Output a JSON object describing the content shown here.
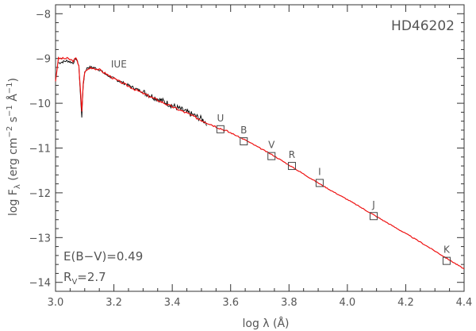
{
  "chart_data": {
    "type": "line",
    "title": "HD46202",
    "xlabel": "log λ (Å)",
    "ylabel_parts": {
      "pre": "log F",
      "sub": "λ",
      "unit_open": " (erg cm",
      "sup1": "−2",
      "mid1": " s",
      "sup2": "−1",
      "mid2": " Å",
      "sup3": "−1",
      "close": ")"
    },
    "xlim": [
      3.0,
      4.4
    ],
    "ylim": [
      -14.2,
      -7.8
    ],
    "xticks": [
      3.0,
      3.2,
      3.4,
      3.6,
      3.8,
      4.0,
      4.2,
      4.4
    ],
    "xtick_labels": [
      "3.0",
      "3.2",
      "3.4",
      "3.6",
      "3.8",
      "4.0",
      "4.2",
      "4.4"
    ],
    "yticks": [
      -14,
      -13,
      -12,
      -11,
      -10,
      -9,
      -8
    ],
    "ytick_labels": [
      "−14",
      "−13",
      "−12",
      "−11",
      "−10",
      "−9",
      "−8"
    ],
    "grid": false,
    "colors": {
      "observed": "#000000",
      "model": "#ee1111",
      "text": "#555555",
      "axes": "#333333"
    },
    "annotations": {
      "reddening": "E(B−V)=0.49",
      "rv_main": "R",
      "rv_sub": "V",
      "rv_value": "=2.7",
      "iue_label": "IUE"
    },
    "series": [
      {
        "kind": "observed-iue",
        "x": [
          3.01,
          3.04,
          3.06,
          3.07,
          3.08,
          3.085,
          3.09,
          3.095,
          3.1,
          3.11,
          3.13,
          3.15,
          3.17,
          3.2,
          3.25,
          3.3,
          3.35,
          3.4,
          3.45,
          3.5,
          3.52
        ],
        "y": [
          -9.1,
          -9.05,
          -9.1,
          -9.0,
          -9.15,
          -9.8,
          -10.3,
          -9.6,
          -9.3,
          -9.2,
          -9.2,
          -9.25,
          -9.35,
          -9.45,
          -9.6,
          -9.75,
          -9.9,
          -10.05,
          -10.2,
          -10.35,
          -10.45
        ]
      },
      {
        "kind": "model",
        "x": [
          3.0,
          3.01,
          3.04,
          3.06,
          3.07,
          3.08,
          3.085,
          3.09,
          3.095,
          3.1,
          3.12,
          3.15,
          3.2,
          3.25,
          3.3,
          3.35,
          3.4,
          3.45,
          3.5,
          3.55,
          3.6,
          3.65,
          3.7,
          3.75,
          3.8,
          3.85,
          3.9,
          3.95,
          4.0,
          4.05,
          4.1,
          4.15,
          4.2,
          4.25,
          4.3,
          4.35,
          4.4
        ],
        "y": [
          -9.5,
          -9.0,
          -9.0,
          -9.05,
          -9.0,
          -9.15,
          -9.7,
          -10.2,
          -9.55,
          -9.3,
          -9.2,
          -9.25,
          -9.45,
          -9.62,
          -9.78,
          -9.93,
          -10.08,
          -10.22,
          -10.38,
          -10.52,
          -10.66,
          -10.82,
          -11.0,
          -11.18,
          -11.38,
          -11.58,
          -11.78,
          -11.97,
          -12.15,
          -12.34,
          -12.53,
          -12.72,
          -12.91,
          -13.1,
          -13.3,
          -13.5,
          -13.7
        ]
      },
      {
        "kind": "photometry",
        "labels": [
          "U",
          "B",
          "V",
          "R",
          "I",
          "J",
          "K"
        ],
        "x": [
          3.565,
          3.645,
          3.74,
          3.81,
          3.905,
          4.09,
          4.34
        ],
        "y": [
          -10.58,
          -10.85,
          -11.18,
          -11.4,
          -11.78,
          -12.52,
          -13.52
        ]
      }
    ]
  }
}
